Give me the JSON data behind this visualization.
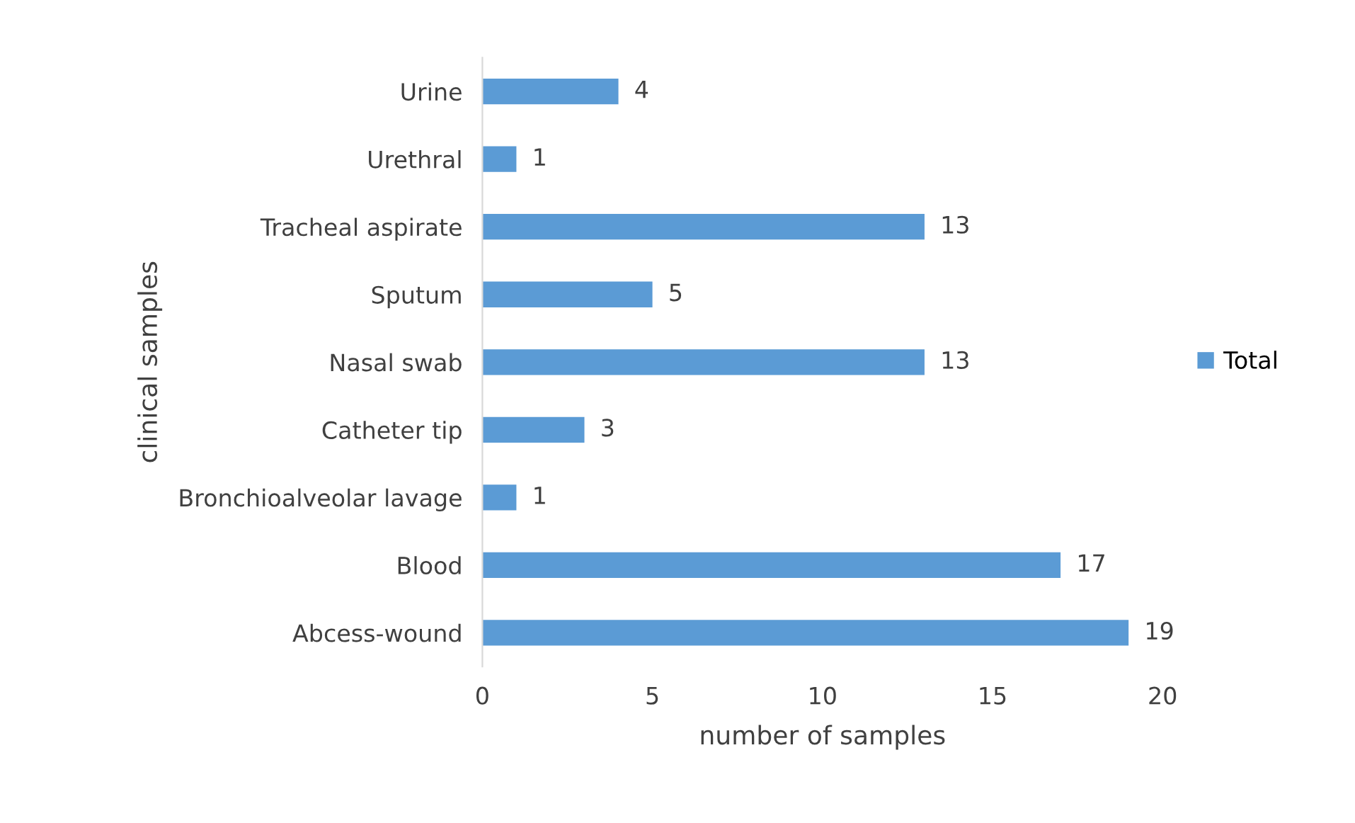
{
  "chart_data": {
    "type": "bar",
    "orientation": "horizontal",
    "xlabel": "number of samples",
    "ylabel": "clinical samples",
    "categories": [
      "Urine",
      "Urethral",
      "Tracheal aspirate",
      "Sputum",
      "Nasal swab",
      "Catheter tip",
      "Bronchioalveolar lavage",
      "Blood",
      "Abcess-wound"
    ],
    "series": [
      {
        "name": "Total",
        "color": "#5b9bd5",
        "values": [
          4,
          1,
          13,
          5,
          13,
          3,
          1,
          17,
          19
        ]
      }
    ],
    "xlim": [
      0,
      20
    ],
    "xticks": [
      0,
      5,
      10,
      15,
      20
    ],
    "data_labels": true,
    "grid": false,
    "legend": "right"
  }
}
